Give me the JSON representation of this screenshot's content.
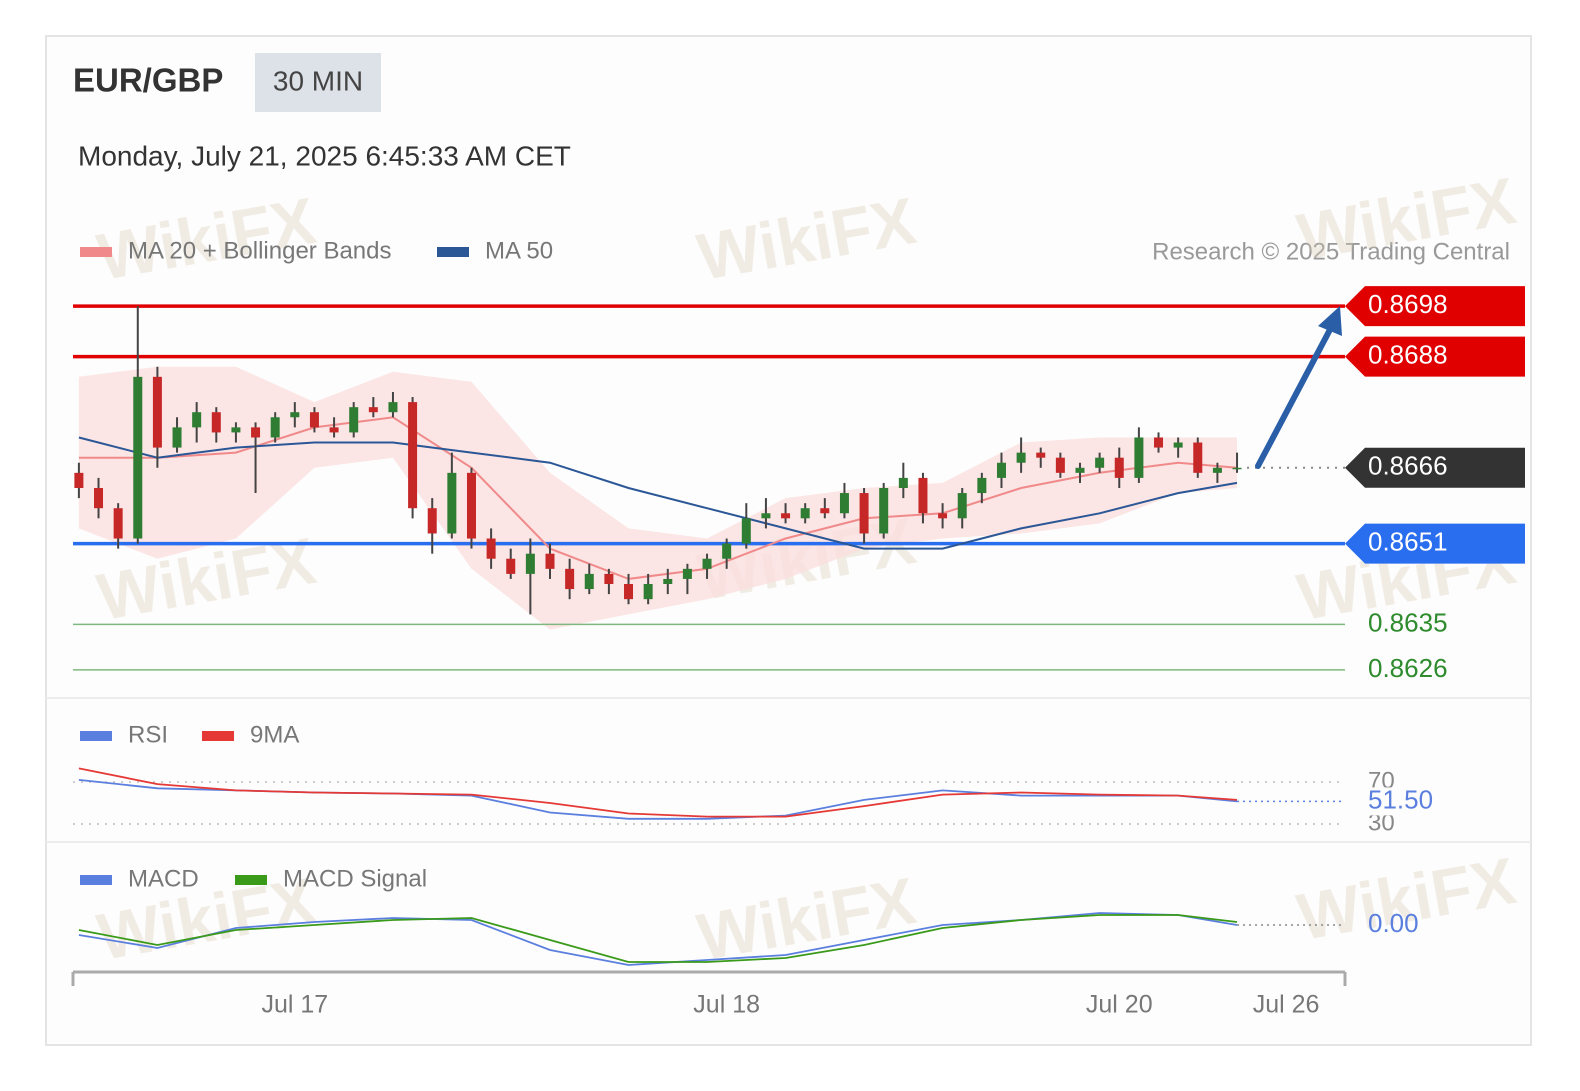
{
  "chart_data": {
    "type": "candlestick",
    "title": "EUR/GBP",
    "timeframe": "30 MIN",
    "subtitle": "Monday, July 21, 2025 6:45:33 AM CET",
    "credit": "Research © 2025 Trading Central",
    "watermark": "WikiFX",
    "xlim": [
      -0.3,
      64.5
    ],
    "xticks": [
      {
        "value": 11,
        "label": "Jul 17"
      },
      {
        "value": 33,
        "label": "Jul 18"
      },
      {
        "value": 53,
        "label": "Jul 20"
      },
      {
        "value": 61.5,
        "label": "Jul 26"
      }
    ],
    "ylim": [
      0.8624,
      0.87
    ],
    "up_color": "#2e7d32",
    "down_color": "#c62828",
    "candles": [
      [
        0.8665,
        0.8667,
        0.866,
        0.8662
      ],
      [
        0.8662,
        0.8664,
        0.8656,
        0.8658
      ],
      [
        0.8658,
        0.8659,
        0.865,
        0.8652
      ],
      [
        0.8652,
        0.8698,
        0.8651,
        0.8684
      ],
      [
        0.8684,
        0.8686,
        0.8666,
        0.867
      ],
      [
        0.867,
        0.8676,
        0.8669,
        0.8674
      ],
      [
        0.8674,
        0.8679,
        0.8671,
        0.8677
      ],
      [
        0.8677,
        0.8678,
        0.8671,
        0.8673
      ],
      [
        0.8673,
        0.8675,
        0.8671,
        0.8674
      ],
      [
        0.8674,
        0.8675,
        0.8661,
        0.8672
      ],
      [
        0.8672,
        0.8677,
        0.8671,
        0.8676
      ],
      [
        0.8676,
        0.8679,
        0.8674,
        0.8677
      ],
      [
        0.8677,
        0.8678,
        0.8673,
        0.8674
      ],
      [
        0.8674,
        0.8676,
        0.8672,
        0.8673
      ],
      [
        0.8673,
        0.8679,
        0.8672,
        0.8678
      ],
      [
        0.8678,
        0.868,
        0.8676,
        0.8677
      ],
      [
        0.8677,
        0.8681,
        0.8676,
        0.8679
      ],
      [
        0.8679,
        0.868,
        0.8656,
        0.8658
      ],
      [
        0.8658,
        0.866,
        0.8649,
        0.8653
      ],
      [
        0.8653,
        0.8669,
        0.8652,
        0.8665
      ],
      [
        0.8665,
        0.8666,
        0.865,
        0.8652
      ],
      [
        0.8652,
        0.8654,
        0.8646,
        0.8648
      ],
      [
        0.8648,
        0.865,
        0.8644,
        0.8645
      ],
      [
        0.8645,
        0.8652,
        0.8637,
        0.8649
      ],
      [
        0.8649,
        0.8651,
        0.8644,
        0.8646
      ],
      [
        0.8646,
        0.8648,
        0.864,
        0.8642
      ],
      [
        0.8642,
        0.8647,
        0.8641,
        0.8645
      ],
      [
        0.8645,
        0.8646,
        0.8641,
        0.8643
      ],
      [
        0.8643,
        0.8645,
        0.8639,
        0.864
      ],
      [
        0.864,
        0.8645,
        0.8639,
        0.8643
      ],
      [
        0.8643,
        0.8646,
        0.8641,
        0.8644
      ],
      [
        0.8644,
        0.8647,
        0.8641,
        0.8646
      ],
      [
        0.8646,
        0.8649,
        0.8644,
        0.8648
      ],
      [
        0.8648,
        0.8652,
        0.8646,
        0.8651
      ],
      [
        0.8651,
        0.8659,
        0.865,
        0.8656
      ],
      [
        0.8656,
        0.866,
        0.8654,
        0.8657
      ],
      [
        0.8657,
        0.8659,
        0.8655,
        0.8656
      ],
      [
        0.8656,
        0.8659,
        0.8655,
        0.8658
      ],
      [
        0.8658,
        0.866,
        0.8656,
        0.8657
      ],
      [
        0.8657,
        0.8663,
        0.8656,
        0.8661
      ],
      [
        0.8661,
        0.8662,
        0.8651,
        0.8653
      ],
      [
        0.8653,
        0.8663,
        0.8652,
        0.8662
      ],
      [
        0.8662,
        0.8667,
        0.866,
        0.8664
      ],
      [
        0.8664,
        0.8665,
        0.8655,
        0.8657
      ],
      [
        0.8657,
        0.8659,
        0.8654,
        0.8656
      ],
      [
        0.8656,
        0.8662,
        0.8654,
        0.8661
      ],
      [
        0.8661,
        0.8665,
        0.8659,
        0.8664
      ],
      [
        0.8664,
        0.8669,
        0.8662,
        0.8667
      ],
      [
        0.8667,
        0.8672,
        0.8665,
        0.8669
      ],
      [
        0.8669,
        0.867,
        0.8666,
        0.8668
      ],
      [
        0.8668,
        0.8669,
        0.8664,
        0.8665
      ],
      [
        0.8665,
        0.8667,
        0.8663,
        0.8666
      ],
      [
        0.8666,
        0.8669,
        0.8665,
        0.8668
      ],
      [
        0.8668,
        0.867,
        0.8662,
        0.8664
      ],
      [
        0.8664,
        0.8674,
        0.8663,
        0.8672
      ],
      [
        0.8672,
        0.8673,
        0.8669,
        0.867
      ],
      [
        0.867,
        0.8672,
        0.8668,
        0.8671
      ],
      [
        0.8671,
        0.8672,
        0.8664,
        0.8665
      ],
      [
        0.8665,
        0.8667,
        0.8663,
        0.8666
      ],
      [
        0.8666,
        0.8669,
        0.8665,
        0.8666
      ]
    ],
    "overlays": {
      "x": [
        0,
        4,
        8,
        12,
        16,
        20,
        24,
        28,
        32,
        36,
        40,
        44,
        48,
        52,
        56,
        59
      ],
      "series": [
        {
          "name": "MA 20 + Bollinger Bands",
          "color": "#f08a8a",
          "band_color": "#fbdede",
          "values": [
            0.8668,
            0.8668,
            0.8669,
            0.8674,
            0.8676,
            0.8666,
            0.865,
            0.8644,
            0.8646,
            0.8652,
            0.8656,
            0.8657,
            0.8662,
            0.8665,
            0.8667,
            0.8666
          ],
          "upper": [
            0.8684,
            0.8686,
            0.8686,
            0.8679,
            0.8685,
            0.8683,
            0.8665,
            0.8654,
            0.8652,
            0.866,
            0.8662,
            0.8663,
            0.8671,
            0.8672,
            0.8672,
            0.8672
          ],
          "lower": [
            0.8654,
            0.8648,
            0.8652,
            0.8666,
            0.8668,
            0.8646,
            0.8634,
            0.8637,
            0.864,
            0.8644,
            0.865,
            0.8652,
            0.8653,
            0.8655,
            0.8661,
            0.8662
          ]
        },
        {
          "name": "MA 50",
          "color": "#2b5797",
          "values": [
            0.8672,
            0.8668,
            0.867,
            0.8671,
            0.8671,
            0.8669,
            0.8667,
            0.8662,
            0.8658,
            0.8654,
            0.865,
            0.865,
            0.8654,
            0.8657,
            0.8661,
            0.8663
          ]
        }
      ]
    },
    "levels": [
      {
        "value": 0.8698,
        "color": "#e00000",
        "line": "solid",
        "label_style": "tag"
      },
      {
        "value": 0.8688,
        "color": "#e00000",
        "line": "solid",
        "label_style": "tag"
      },
      {
        "value": 0.8666,
        "color": "#333333",
        "line": "dotted",
        "label_style": "tag"
      },
      {
        "value": 0.8651,
        "color": "#2a6ef0",
        "line": "solid",
        "label_style": "tag"
      },
      {
        "value": 0.8635,
        "color": "#2e8b2e",
        "line": "thin",
        "label_style": "text"
      },
      {
        "value": 0.8626,
        "color": "#2e8b2e",
        "line": "thin",
        "label_style": "text"
      }
    ],
    "rsi": {
      "ylim": [
        25,
        85
      ],
      "yticks": [
        70,
        30
      ],
      "series": [
        {
          "name": "RSI",
          "color": "#5b7fde",
          "values": [
            72,
            64,
            62,
            60,
            59,
            57,
            41,
            35,
            35,
            38,
            53,
            62,
            57,
            57,
            57,
            51.5
          ]
        },
        {
          "name": "9MA",
          "color": "#e53935",
          "values": [
            83,
            68,
            62,
            60,
            59,
            58,
            50,
            40,
            37,
            37,
            47,
            58,
            60,
            58,
            57,
            53
          ]
        }
      ],
      "last": {
        "value": 51.5,
        "label": "51.50",
        "color": "#5b7fde"
      }
    },
    "macd": {
      "ylim": [
        -0.0009,
        0.0003
      ],
      "series": [
        {
          "name": "MACD",
          "color": "#5b7fde",
          "values": [
            -0.0002,
            -0.00046,
            -6e-05,
            6e-05,
            0.00014,
            0.0001,
            -0.0005,
            -0.0008,
            -0.0007,
            -0.0006,
            -0.0003,
            0,
            0.0001,
            0.00024,
            0.0002,
            0
          ]
        },
        {
          "name": "MACD Signal",
          "color": "#3a9a1a",
          "values": [
            -0.0001,
            -0.0004,
            -0.0001,
            0,
            0.0001,
            0.00014,
            -0.0003,
            -0.00074,
            -0.00074,
            -0.00066,
            -0.0004,
            -6e-05,
            0.0001,
            0.0002,
            0.0002,
            6e-05
          ]
        }
      ],
      "zero": {
        "value": 0,
        "label": "0.00",
        "color": "#5b7fde"
      }
    }
  }
}
